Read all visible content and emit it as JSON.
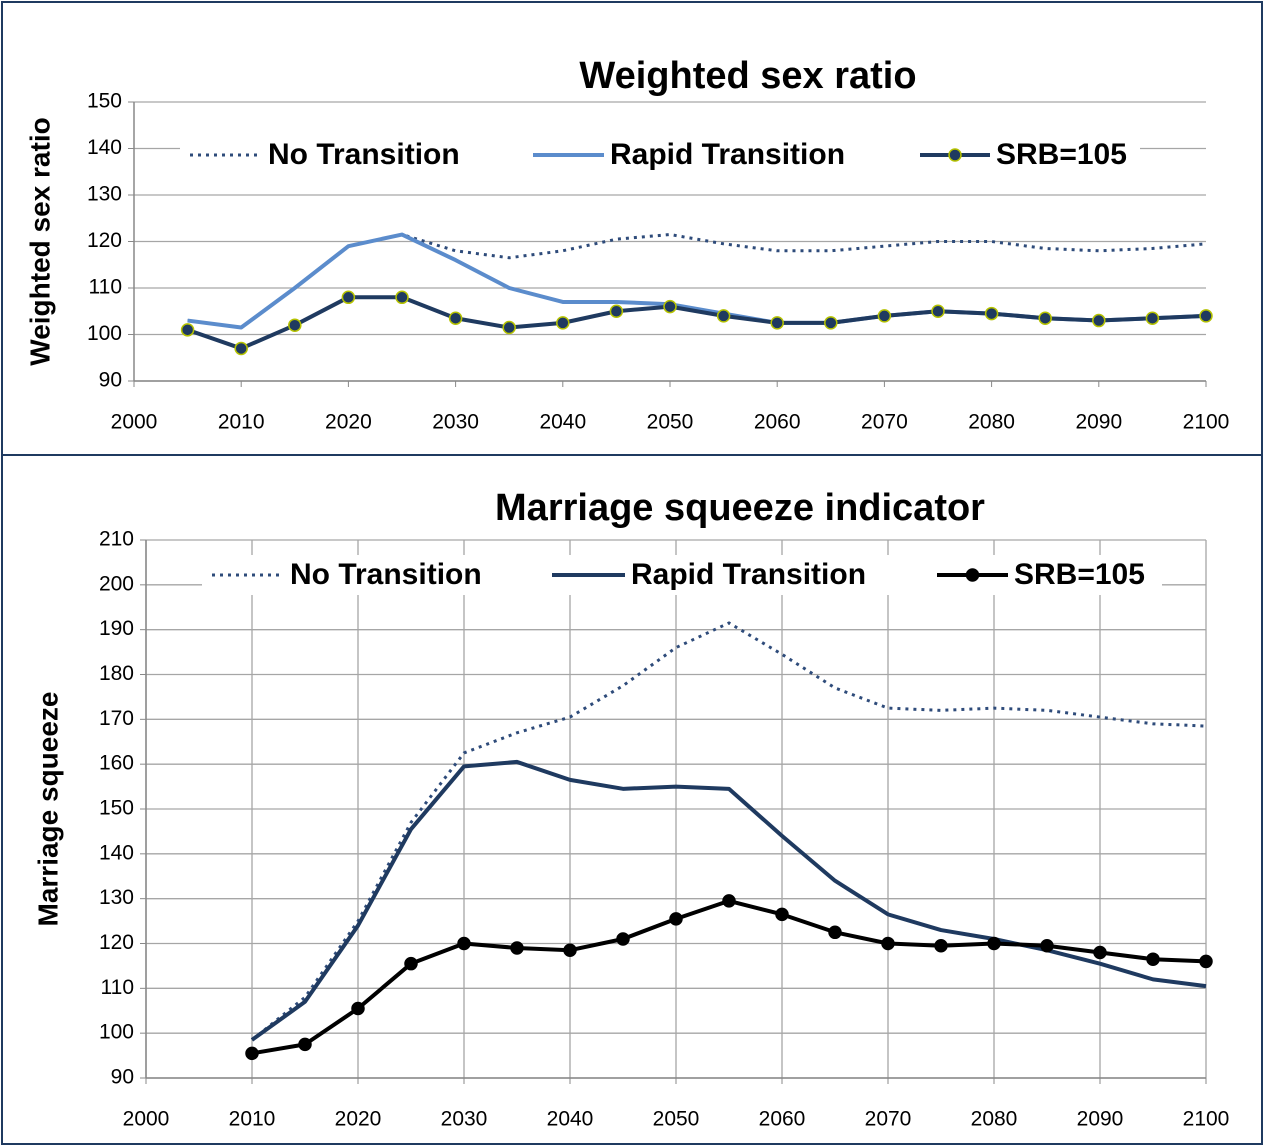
{
  "chart_data": [
    {
      "type": "line",
      "title": "Weighted sex ratio",
      "y_label": "Weighted sex ratio",
      "x": [
        2005,
        2010,
        2015,
        2020,
        2025,
        2030,
        2035,
        2040,
        2045,
        2050,
        2055,
        2060,
        2065,
        2070,
        2075,
        2080,
        2085,
        2090,
        2095,
        2100
      ],
      "xlim": [
        2000,
        2100
      ],
      "xticks": [
        2000,
        2010,
        2020,
        2030,
        2040,
        2050,
        2060,
        2070,
        2080,
        2090,
        2100
      ],
      "ylim": [
        90,
        150
      ],
      "yticks": [
        90,
        100,
        110,
        120,
        130,
        140,
        150
      ],
      "xgrid": false,
      "ygrid": true,
      "legend": "top",
      "series": [
        {
          "name": "No Transition",
          "color": "#2e4b7a",
          "dash": "dot",
          "marker": "none",
          "values": [
            103,
            101.5,
            110,
            119,
            121.5,
            118,
            116.5,
            118,
            120.5,
            121.5,
            119.5,
            118,
            118,
            119,
            120,
            120,
            118.5,
            118,
            118.5,
            119.5
          ]
        },
        {
          "name": "Rapid Transition",
          "color": "#5b8ccc",
          "dash": "solid",
          "marker": "none",
          "values": [
            103,
            101.5,
            110,
            119,
            121.5,
            116,
            110,
            107,
            107,
            106.5,
            104.5,
            102.5,
            102.5,
            104,
            105,
            104.5,
            103.5,
            103,
            103.5,
            104
          ]
        },
        {
          "name": "SRB=105",
          "color": "#1f3a60",
          "dash": "solid",
          "marker": "circle",
          "marker_edge": "#b5c200",
          "values": [
            101,
            97,
            102,
            108,
            108,
            103.5,
            101.5,
            102.5,
            105,
            106,
            104,
            102.5,
            102.5,
            104,
            105,
            104.5,
            103.5,
            103,
            103.5,
            104
          ]
        }
      ]
    },
    {
      "type": "line",
      "title": "Marriage squeeze indicator",
      "y_label": "Marriage squeeze",
      "x": [
        2010,
        2015,
        2020,
        2025,
        2030,
        2035,
        2040,
        2045,
        2050,
        2055,
        2060,
        2065,
        2070,
        2075,
        2080,
        2085,
        2090,
        2095,
        2100
      ],
      "xlim": [
        2000,
        2100
      ],
      "xticks": [
        2000,
        2010,
        2020,
        2030,
        2040,
        2050,
        2060,
        2070,
        2080,
        2090,
        2100
      ],
      "ylim": [
        90,
        210
      ],
      "yticks": [
        90,
        100,
        110,
        120,
        130,
        140,
        150,
        160,
        170,
        180,
        190,
        200,
        210
      ],
      "xgrid": true,
      "ygrid": true,
      "legend": "top",
      "series": [
        {
          "name": "No Transition",
          "color": "#2e4b7a",
          "dash": "dot",
          "marker": "none",
          "values": [
            98.5,
            108,
            125,
            147,
            162.5,
            167,
            170.5,
            177.5,
            186,
            191.5,
            184.5,
            177,
            172.5,
            172,
            172.5,
            172,
            170.5,
            169,
            168.5
          ]
        },
        {
          "name": "Rapid Transition",
          "color": "#1f3a60",
          "dash": "solid",
          "marker": "none",
          "values": [
            98.5,
            107,
            124,
            145.5,
            159.5,
            160.5,
            156.5,
            154.5,
            155,
            154.5,
            144,
            134,
            126.5,
            123,
            121,
            118.5,
            115.5,
            112,
            110.5
          ]
        },
        {
          "name": "SRB=105",
          "color": "#000000",
          "dash": "solid",
          "marker": "circle",
          "marker_edge": "#000000",
          "values": [
            95.5,
            97.5,
            105.5,
            115.5,
            120,
            119,
            118.5,
            121,
            125.5,
            129.5,
            126.5,
            122.5,
            120,
            119.5,
            120,
            119.5,
            118,
            116.5,
            116
          ]
        }
      ]
    }
  ]
}
